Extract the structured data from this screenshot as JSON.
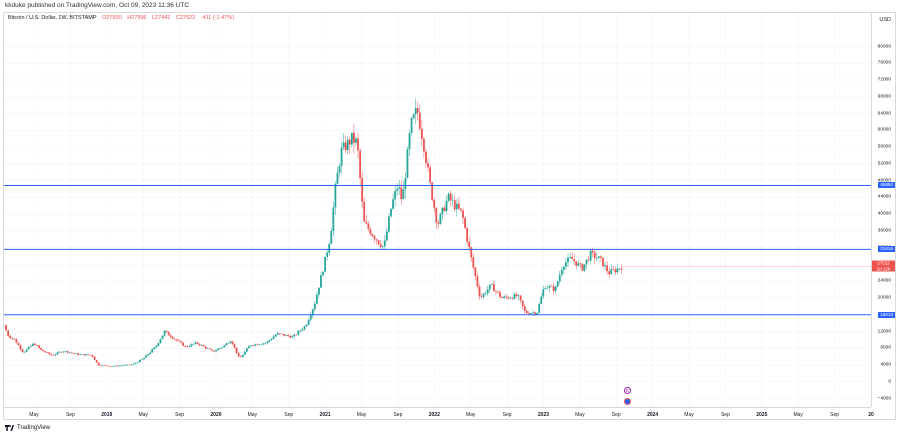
{
  "header": {
    "published": "kkduke published on TradingView.com, Oct 09, 2023 11:36 UTC"
  },
  "legend": {
    "symbol": "Bitcoin / U.S. Dollar, 1W, BITSTAMP",
    "open": "O27930",
    "high": "H27996",
    "low": "L27442",
    "close": "C27522",
    "change": "-411 (-1.47%)"
  },
  "yaxis": {
    "unit": "USD",
    "badges": [
      {
        "value": 46850,
        "label": "46850"
      },
      {
        "value": 31616,
        "label": "31616"
      },
      {
        "value": 16016,
        "label": "16016"
      }
    ],
    "price_badge": {
      "value": 27522,
      "label": "27522",
      "sub": "2d 12h"
    }
  },
  "footer": {
    "brand": "TradingView"
  },
  "events": [
    {
      "icon": "dividend-icon",
      "glyph": "E"
    },
    {
      "icon": "flag-icon",
      "glyph": "●"
    }
  ],
  "chart_data": {
    "type": "candlestick",
    "interval": "1W",
    "y_range": [
      -6000,
      88000
    ],
    "y_ticks": [
      -4000,
      0,
      4000,
      8000,
      12000,
      16000,
      20000,
      24000,
      28000,
      32000,
      36000,
      40000,
      44000,
      48000,
      52000,
      56000,
      60000,
      64000,
      68000,
      72000,
      76000,
      80000
    ],
    "x_ticks": [
      "May",
      "Sep",
      "2019",
      "May",
      "Sep",
      "2020",
      "May",
      "Sep",
      "2021",
      "May",
      "Sep",
      "2022",
      "May",
      "Sep",
      "2023",
      "May",
      "Sep",
      "2024",
      "May",
      "Sep",
      "2025",
      "May",
      "Sep",
      "20"
    ],
    "x_start": 2018.0,
    "x_end": 2026.1,
    "horizontal_levels": [
      46850,
      31616,
      16016
    ],
    "colors": {
      "up": "#26a69a",
      "down": "#ef5350",
      "level": "#2962ff",
      "grid": "#f0f3fa"
    },
    "anchors": [
      [
        2018.0,
        13500
      ],
      [
        2018.04,
        11000
      ],
      [
        2018.1,
        10000
      ],
      [
        2018.18,
        7000
      ],
      [
        2018.28,
        9200
      ],
      [
        2018.35,
        7500
      ],
      [
        2018.45,
        6300
      ],
      [
        2018.55,
        7400
      ],
      [
        2018.7,
        6500
      ],
      [
        2018.82,
        6400
      ],
      [
        2018.88,
        4000
      ],
      [
        2019.0,
        3700
      ],
      [
        2019.2,
        4100
      ],
      [
        2019.3,
        5500
      ],
      [
        2019.42,
        8500
      ],
      [
        2019.5,
        12000
      ],
      [
        2019.58,
        10500
      ],
      [
        2019.7,
        8300
      ],
      [
        2019.8,
        9300
      ],
      [
        2019.95,
        7200
      ],
      [
        2020.05,
        8500
      ],
      [
        2020.12,
        10000
      ],
      [
        2020.2,
        5500
      ],
      [
        2020.3,
        8800
      ],
      [
        2020.45,
        9300
      ],
      [
        2020.55,
        11500
      ],
      [
        2020.7,
        10700
      ],
      [
        2020.82,
        13500
      ],
      [
        2020.9,
        18500
      ],
      [
        2021.0,
        29000
      ],
      [
        2021.05,
        35000
      ],
      [
        2021.1,
        47000
      ],
      [
        2021.15,
        55000
      ],
      [
        2021.25,
        58000
      ],
      [
        2021.3,
        57000
      ],
      [
        2021.36,
        38000
      ],
      [
        2021.45,
        35000
      ],
      [
        2021.55,
        32000
      ],
      [
        2021.62,
        42000
      ],
      [
        2021.68,
        47000
      ],
      [
        2021.72,
        43000
      ],
      [
        2021.8,
        61000
      ],
      [
        2021.86,
        65000
      ],
      [
        2021.92,
        57000
      ],
      [
        2021.98,
        47000
      ],
      [
        2022.05,
        37500
      ],
      [
        2022.15,
        44000
      ],
      [
        2022.28,
        40000
      ],
      [
        2022.36,
        30000
      ],
      [
        2022.45,
        20000
      ],
      [
        2022.55,
        23000
      ],
      [
        2022.65,
        20000
      ],
      [
        2022.8,
        20500
      ],
      [
        2022.87,
        16500
      ],
      [
        2022.98,
        16600
      ],
      [
        2023.05,
        23000
      ],
      [
        2023.15,
        22000
      ],
      [
        2023.22,
        28000
      ],
      [
        2023.3,
        29500
      ],
      [
        2023.4,
        27000
      ],
      [
        2023.48,
        30500
      ],
      [
        2023.57,
        29200
      ],
      [
        2023.65,
        26000
      ],
      [
        2023.72,
        26800
      ],
      [
        2023.77,
        27522
      ]
    ]
  }
}
